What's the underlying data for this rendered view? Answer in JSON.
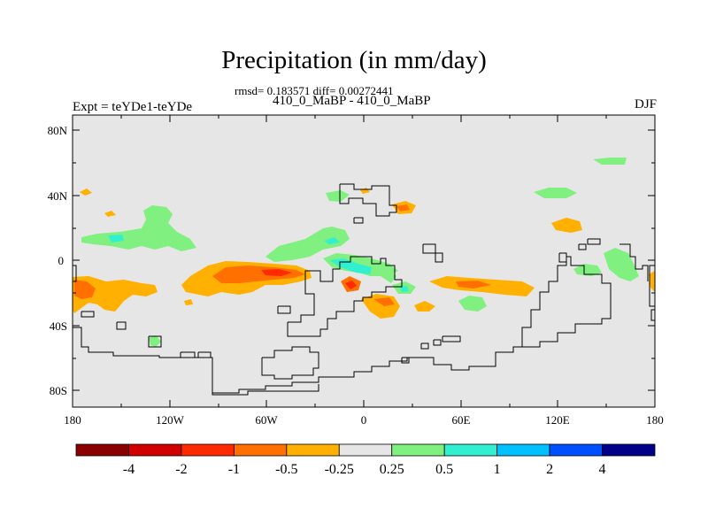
{
  "title": "Precipitation (in mm/day)",
  "stats": "rmsd= 0.183571 diff= 0.00272441",
  "subtitle": "410_0_MaBP - 410_0_MaBP",
  "left_label": "Expt = teYDe1-teYDe",
  "season": "DJF",
  "colors": {
    "background_field": "#e6e6e6",
    "contour_line": "#000000",
    "positive_light": "#80f080",
    "positive_mid": "#30f0d0",
    "negative_light": "#ffb000",
    "negative_mid": "#ff7000",
    "negative_strong": "#ff2200"
  },
  "map": {
    "lat_ticks": [
      "80N",
      "40N",
      "0",
      "40S",
      "80S"
    ],
    "lon_ticks": [
      "180",
      "120W",
      "60W",
      "0",
      "60E",
      "120E",
      "180"
    ]
  },
  "colorbar": {
    "colors": [
      "#8b0000",
      "#d00000",
      "#ff2a00",
      "#ff7000",
      "#ffb000",
      "#e6e6e6",
      "#80f080",
      "#30f0d0",
      "#00c0ff",
      "#0050ff",
      "#00008b"
    ],
    "labels": [
      "-4",
      "-2",
      "-1",
      "-0.5",
      "-0.25",
      "0.25",
      "0.5",
      "1",
      "2",
      "4"
    ]
  }
}
